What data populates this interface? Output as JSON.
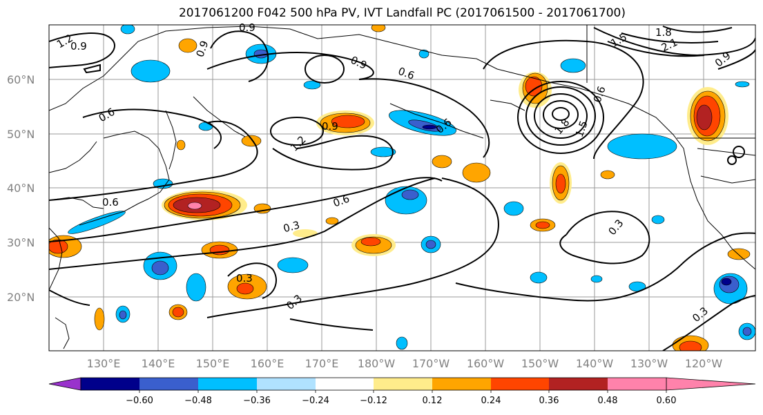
{
  "title": "2017061200 F042 500 hPa PV, IVT Landfall PC (2017061500 - 2017061700)",
  "lat_labels": [
    "60°N",
    "50°N",
    "40°N",
    "30°N",
    "20°N"
  ],
  "lon_labels": [
    "130°E",
    "140°E",
    "150°E",
    "160°E",
    "170°E",
    "180°W",
    "170°W",
    "160°W",
    "150°W",
    "140°W",
    "130°W",
    "120°W"
  ],
  "contour_labels": [
    "1.2",
    "0.9",
    "0.9",
    "0.9",
    "1.5",
    "1.8",
    "2.1",
    "0.9",
    "0.6",
    "0.9",
    "1.2",
    "0.9",
    "0.6",
    "1.8",
    "1.5",
    "0.6",
    "0.6",
    "0.6",
    "0.3",
    "0.6",
    "0.3",
    "0.3",
    "0.3",
    "0.3"
  ],
  "colorbar": {
    "tick_labels": [
      "−0.60",
      "−0.48",
      "−0.36",
      "−0.24",
      "−0.12",
      "0.12",
      "0.24",
      "0.36",
      "0.48",
      "0.60"
    ],
    "colors": [
      "#9932cc",
      "#00008b",
      "#3a5fcd",
      "#00bfff",
      "#b0e2ff",
      "#ffffff",
      "#ffec8b",
      "#ffa500",
      "#ff4500",
      "#b22222",
      "#ff82ab"
    ]
  }
}
